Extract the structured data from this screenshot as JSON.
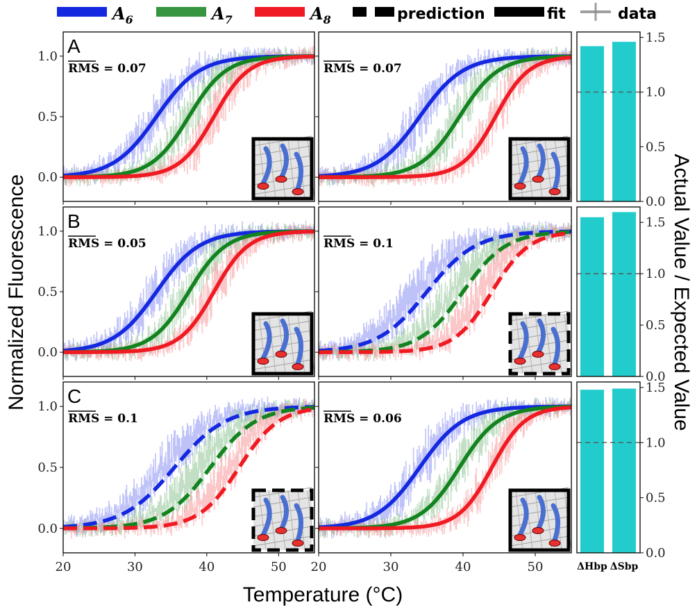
{
  "legend": {
    "a6": "A6",
    "a7": "A7",
    "a8": "A8",
    "prediction": "prediction",
    "fit": "fit",
    "data": "data"
  },
  "colors": {
    "a6": "#1428e0",
    "a7": "#13831f",
    "a8": "#f01a22",
    "bar": "#22cccc",
    "a6_data": "#7f86f3",
    "a7_data": "#86c08c",
    "a8_data": "#f88f92"
  },
  "chart_data": {
    "type": "line",
    "xlabel": "Temperature (°C)",
    "ylabel": "Normalized Fluorescence",
    "right_ylabel": "Actual Value / Expected Value",
    "xlim": [
      20,
      55
    ],
    "ylim": [
      -0.2,
      1.2
    ],
    "xticks": [
      "20",
      "30",
      "40",
      "50"
    ],
    "yticks": [
      "0.0",
      "0.5",
      "1.0"
    ],
    "panels": [
      {
        "row": 0,
        "col": 0,
        "label": "A",
        "rms": "0.07",
        "style": "fit",
        "series": [
          {
            "name": "A6",
            "tm": 33.0,
            "width": 3.0
          },
          {
            "name": "A7",
            "tm": 37.5,
            "width": 2.6
          },
          {
            "name": "A8",
            "tm": 41.0,
            "width": 2.4
          }
        ]
      },
      {
        "row": 0,
        "col": 1,
        "label": "",
        "rms": "0.07",
        "style": "fit",
        "series": [
          {
            "name": "A6",
            "tm": 34.0,
            "width": 3.0
          },
          {
            "name": "A7",
            "tm": 39.5,
            "width": 2.7
          },
          {
            "name": "A8",
            "tm": 44.5,
            "width": 2.3
          }
        ]
      },
      {
        "row": 1,
        "col": 0,
        "label": "B",
        "rms": "0.05",
        "style": "fit",
        "series": [
          {
            "name": "A6",
            "tm": 33.0,
            "width": 3.0
          },
          {
            "name": "A7",
            "tm": 37.5,
            "width": 2.6
          },
          {
            "name": "A8",
            "tm": 41.0,
            "width": 2.4
          }
        ]
      },
      {
        "row": 1,
        "col": 1,
        "label": "",
        "rms": "0.1",
        "style": "prediction",
        "series": [
          {
            "name": "A6",
            "tm": 35.0,
            "width": 3.4
          },
          {
            "name": "A7",
            "tm": 40.0,
            "width": 3.0
          },
          {
            "name": "A8",
            "tm": 44.0,
            "width": 2.6
          }
        ]
      },
      {
        "row": 2,
        "col": 0,
        "label": "C",
        "rms": "0.1",
        "style": "prediction",
        "series": [
          {
            "name": "A6",
            "tm": 35.5,
            "width": 3.6
          },
          {
            "name": "A7",
            "tm": 40.5,
            "width": 3.2
          },
          {
            "name": "A8",
            "tm": 44.5,
            "width": 2.8
          }
        ]
      },
      {
        "row": 2,
        "col": 1,
        "label": "",
        "rms": "0.06",
        "style": "fit",
        "series": [
          {
            "name": "A6",
            "tm": 34.0,
            "width": 3.0
          },
          {
            "name": "A7",
            "tm": 39.5,
            "width": 2.7
          },
          {
            "name": "A8",
            "tm": 44.0,
            "width": 2.3
          }
        ]
      }
    ],
    "bars": {
      "categories": [
        "ΔHbp",
        "ΔSbp"
      ],
      "rows": [
        {
          "ylim": [
            0,
            1.55
          ],
          "yticks": [
            "0.0",
            "0.5",
            "1.0",
            "1.5"
          ],
          "values": [
            1.42,
            1.46
          ],
          "reference": 1.0
        },
        {
          "ylim": [
            0,
            1.65
          ],
          "yticks": [
            "0.0",
            "0.5",
            "1.0",
            "1.5"
          ],
          "values": [
            1.55,
            1.6
          ],
          "reference": 1.0
        },
        {
          "ylim": [
            0,
            1.55
          ],
          "yticks": [
            "0.0",
            "0.5",
            "1.0",
            "1.5"
          ],
          "values": [
            1.48,
            1.49
          ],
          "reference": 1.0
        }
      ]
    }
  }
}
